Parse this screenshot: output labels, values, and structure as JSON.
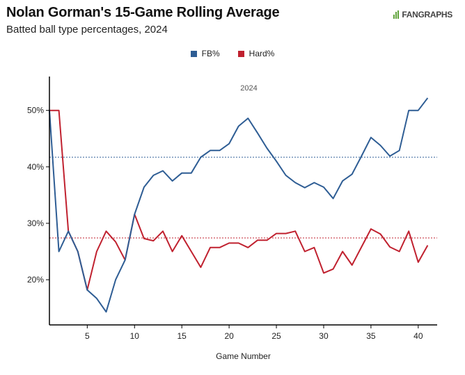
{
  "header": {
    "title": "Nolan Gorman's 15-Game Rolling Average",
    "subtitle": "Batted ball type percentages, 2024",
    "brand": "FANGRAPHS"
  },
  "colors": {
    "fb": "#2e5d94",
    "hard": "#c0212f",
    "axis": "#000000",
    "brand_green": "#5fa23a"
  },
  "chart_data": {
    "type": "line",
    "panel_label": "2024",
    "xlabel": "Game Number",
    "ylabel": "",
    "xlim": [
      1,
      42
    ],
    "ylim": [
      12,
      56
    ],
    "x_ticks": [
      5,
      10,
      15,
      20,
      25,
      30,
      35,
      40
    ],
    "y_ticks": [
      20,
      30,
      40,
      50
    ],
    "y_tick_labels": [
      "20%",
      "30%",
      "40%",
      "50%"
    ],
    "legend_position": "top-center",
    "series": [
      {
        "name": "FB%",
        "color": "#2e5d94",
        "average": 41.7,
        "x": [
          1,
          2,
          3,
          4,
          5,
          6,
          7,
          8,
          9,
          10,
          11,
          12,
          13,
          14,
          15,
          16,
          17,
          18,
          19,
          20,
          21,
          22,
          23,
          24,
          25,
          26,
          27,
          28,
          29,
          30,
          31,
          32,
          33,
          34,
          35,
          36,
          37,
          38,
          39,
          40,
          41
        ],
        "values": [
          50.0,
          25.0,
          28.6,
          25.0,
          18.2,
          16.7,
          14.3,
          20.0,
          23.5,
          31.6,
          36.4,
          38.5,
          39.3,
          37.5,
          38.9,
          38.9,
          41.7,
          42.9,
          42.9,
          44.1,
          47.2,
          48.6,
          46.0,
          43.3,
          41.0,
          38.5,
          37.2,
          36.3,
          37.2,
          36.4,
          34.4,
          37.5,
          38.7,
          41.9,
          45.2,
          43.8,
          41.9,
          42.9,
          50.0,
          50.0,
          52.2
        ]
      },
      {
        "name": "Hard%",
        "color": "#c0212f",
        "average": 27.4,
        "x": [
          1,
          2,
          3,
          4,
          5,
          6,
          7,
          8,
          9,
          10,
          11,
          12,
          13,
          14,
          15,
          16,
          17,
          18,
          19,
          20,
          21,
          22,
          23,
          24,
          25,
          26,
          27,
          28,
          29,
          30,
          31,
          32,
          33,
          34,
          35,
          36,
          37,
          38,
          39,
          40,
          41
        ],
        "values": [
          50.0,
          50.0,
          28.6,
          25.0,
          18.2,
          25.0,
          28.6,
          26.7,
          23.5,
          31.6,
          27.3,
          26.9,
          28.6,
          25.0,
          27.8,
          25.0,
          22.2,
          25.7,
          25.7,
          26.5,
          26.5,
          25.7,
          27.0,
          27.0,
          28.2,
          28.2,
          28.6,
          25.0,
          25.7,
          21.2,
          21.9,
          25.0,
          22.6,
          25.8,
          29.0,
          28.1,
          25.8,
          25.0,
          28.6,
          23.1,
          26.1
        ]
      }
    ]
  }
}
